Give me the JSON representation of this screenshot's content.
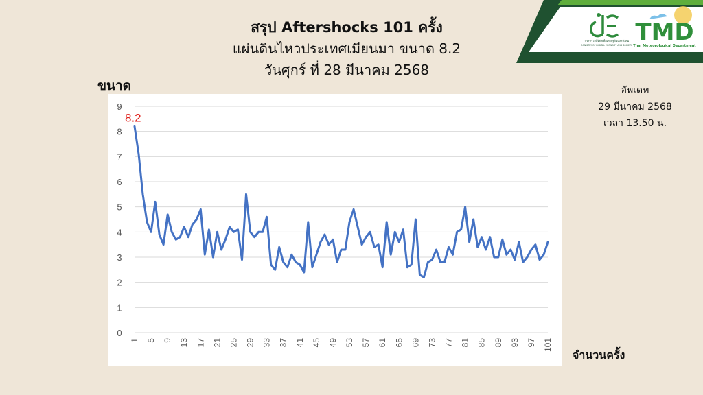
{
  "header": {
    "title": "สรุป Aftershocks 101 ครั้ง",
    "subtitle_line1": "แผ่นดินไหวประเทศเมียนมา ขนาด 8.2",
    "subtitle_line2": "วันศุกร์ ที่ 28 มีนาคม 2568"
  },
  "update": {
    "line1": "อัพเดท",
    "line2": "29 มีนาคม 2568",
    "line3": "เวลา 13.50 น."
  },
  "logos": {
    "tmd": "TMD",
    "tmd_sub": "Thai Meteorological Department",
    "de_line1": "กระทรวงดิจิทัลเพื่อเศรษฐกิจและสังคม",
    "de_line2": "MINISTRY OF DIGITAL ECONOMY AND SOCIETY"
  },
  "colors": {
    "line": "#4472c4",
    "peak_label": "#e0201b",
    "grid": "#d9d9d9",
    "corner_dark": "#1f5130",
    "corner_green": "#5fae3c",
    "tmd_green": "#2f8f3a"
  },
  "chart_data": {
    "type": "line",
    "ylabel": "ขนาด",
    "xlabel": "จำนวนครั้ง",
    "ylim": [
      0,
      9
    ],
    "y_ticks": [
      0,
      1,
      2,
      3,
      4,
      5,
      6,
      7,
      8,
      9
    ],
    "x": [
      1,
      2,
      3,
      4,
      5,
      6,
      7,
      8,
      9,
      10,
      11,
      12,
      13,
      14,
      15,
      16,
      17,
      18,
      19,
      20,
      21,
      22,
      23,
      24,
      25,
      26,
      27,
      28,
      29,
      30,
      31,
      32,
      33,
      34,
      35,
      36,
      37,
      38,
      39,
      40,
      41,
      42,
      43,
      44,
      45,
      46,
      47,
      48,
      49,
      50,
      51,
      52,
      53,
      54,
      55,
      56,
      57,
      58,
      59,
      60,
      61,
      62,
      63,
      64,
      65,
      66,
      67,
      68,
      69,
      70,
      71,
      72,
      73,
      74,
      75,
      76,
      77,
      78,
      79,
      80,
      81,
      82,
      83,
      84,
      85,
      86,
      87,
      88,
      89,
      90,
      91,
      92,
      93,
      94,
      95,
      96,
      97,
      98,
      99,
      100,
      101
    ],
    "x_tick_labels": [
      "1",
      "5",
      "9",
      "13",
      "17",
      "21",
      "25",
      "29",
      "33",
      "37",
      "41",
      "45",
      "49",
      "53",
      "57",
      "61",
      "65",
      "69",
      "73",
      "77",
      "81",
      "85",
      "89",
      "93",
      "97",
      "101"
    ],
    "x_tick_every": 4,
    "grid": true,
    "series": [
      {
        "name": "",
        "values": [
          8.2,
          7.1,
          5.5,
          4.4,
          4.0,
          5.2,
          3.9,
          3.5,
          4.7,
          4.0,
          3.7,
          3.8,
          4.2,
          3.8,
          4.3,
          4.5,
          4.9,
          3.1,
          4.1,
          3.0,
          4.0,
          3.3,
          3.7,
          4.2,
          4.0,
          4.1,
          2.9,
          5.5,
          4.0,
          3.8,
          4.0,
          4.0,
          4.6,
          2.7,
          2.5,
          3.4,
          2.8,
          2.6,
          3.1,
          2.8,
          2.7,
          2.4,
          4.4,
          2.6,
          3.1,
          3.6,
          3.9,
          3.5,
          3.7,
          2.8,
          3.3,
          3.3,
          4.4,
          4.9,
          4.2,
          3.5,
          3.8,
          4.0,
          3.4,
          3.5,
          2.6,
          4.4,
          3.1,
          4.0,
          3.6,
          4.1,
          2.6,
          2.7,
          4.5,
          2.3,
          2.2,
          2.8,
          2.9,
          3.3,
          2.8,
          2.8,
          3.4,
          3.1,
          4.0,
          4.1,
          5.0,
          3.6,
          4.5,
          3.4,
          3.8,
          3.3,
          3.8,
          3.0,
          3.0,
          3.7,
          3.1,
          3.3,
          2.9,
          3.6,
          2.8,
          3.0,
          3.3,
          3.5,
          2.9,
          3.1,
          3.6
        ]
      }
    ],
    "annotation": {
      "text": "8.2",
      "x": 1,
      "y": 8.2
    }
  }
}
